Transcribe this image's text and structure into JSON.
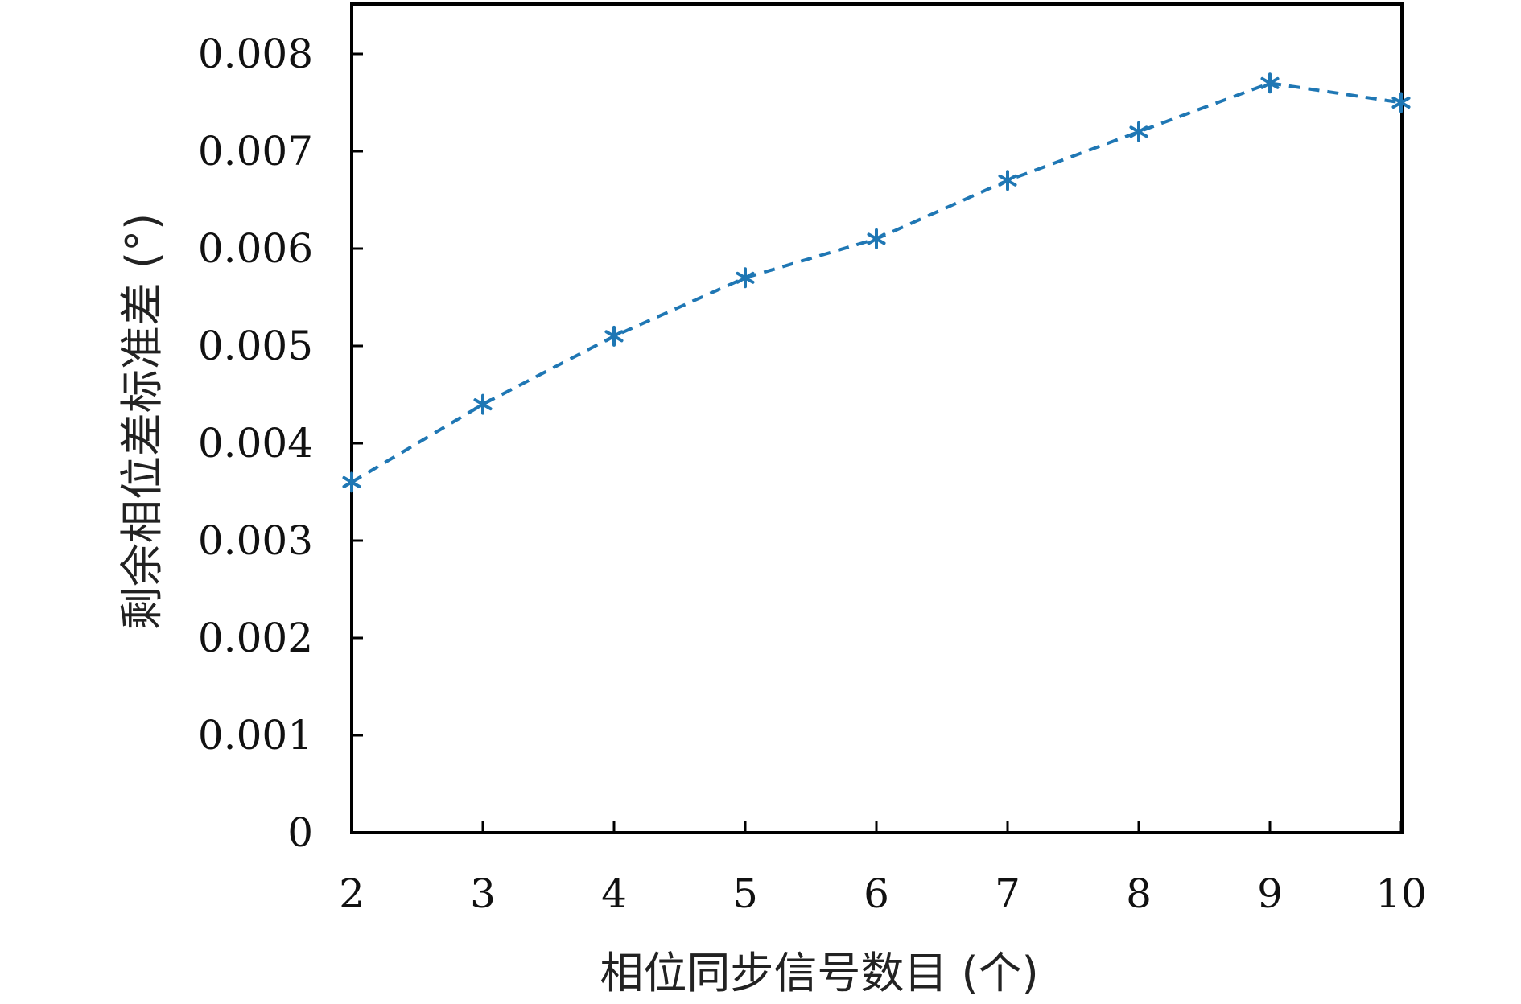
{
  "chart_data": {
    "type": "line",
    "title": "",
    "xlabel": "相位同步信号数目 (个)",
    "ylabel": "剩余相位差标准差 (°)",
    "x": [
      2,
      3,
      4,
      5,
      6,
      7,
      8,
      9,
      10
    ],
    "series": [
      {
        "values": [
          0.0036,
          0.0044,
          0.0051,
          0.0057,
          0.0061,
          0.0067,
          0.0072,
          0.0077,
          0.0075
        ],
        "color": "#1f77b4",
        "line_style": "dashed",
        "marker": "asterisk"
      }
    ],
    "xlim": [
      2,
      10
    ],
    "ylim": [
      0,
      0.0085
    ],
    "xticks": [
      "2",
      "3",
      "4",
      "5",
      "6",
      "7",
      "8",
      "9",
      "10"
    ],
    "yticks": [
      "0",
      "0.001",
      "0.002",
      "0.003",
      "0.004",
      "0.005",
      "0.006",
      "0.007",
      "0.008"
    ],
    "grid": false,
    "legend": "none"
  }
}
